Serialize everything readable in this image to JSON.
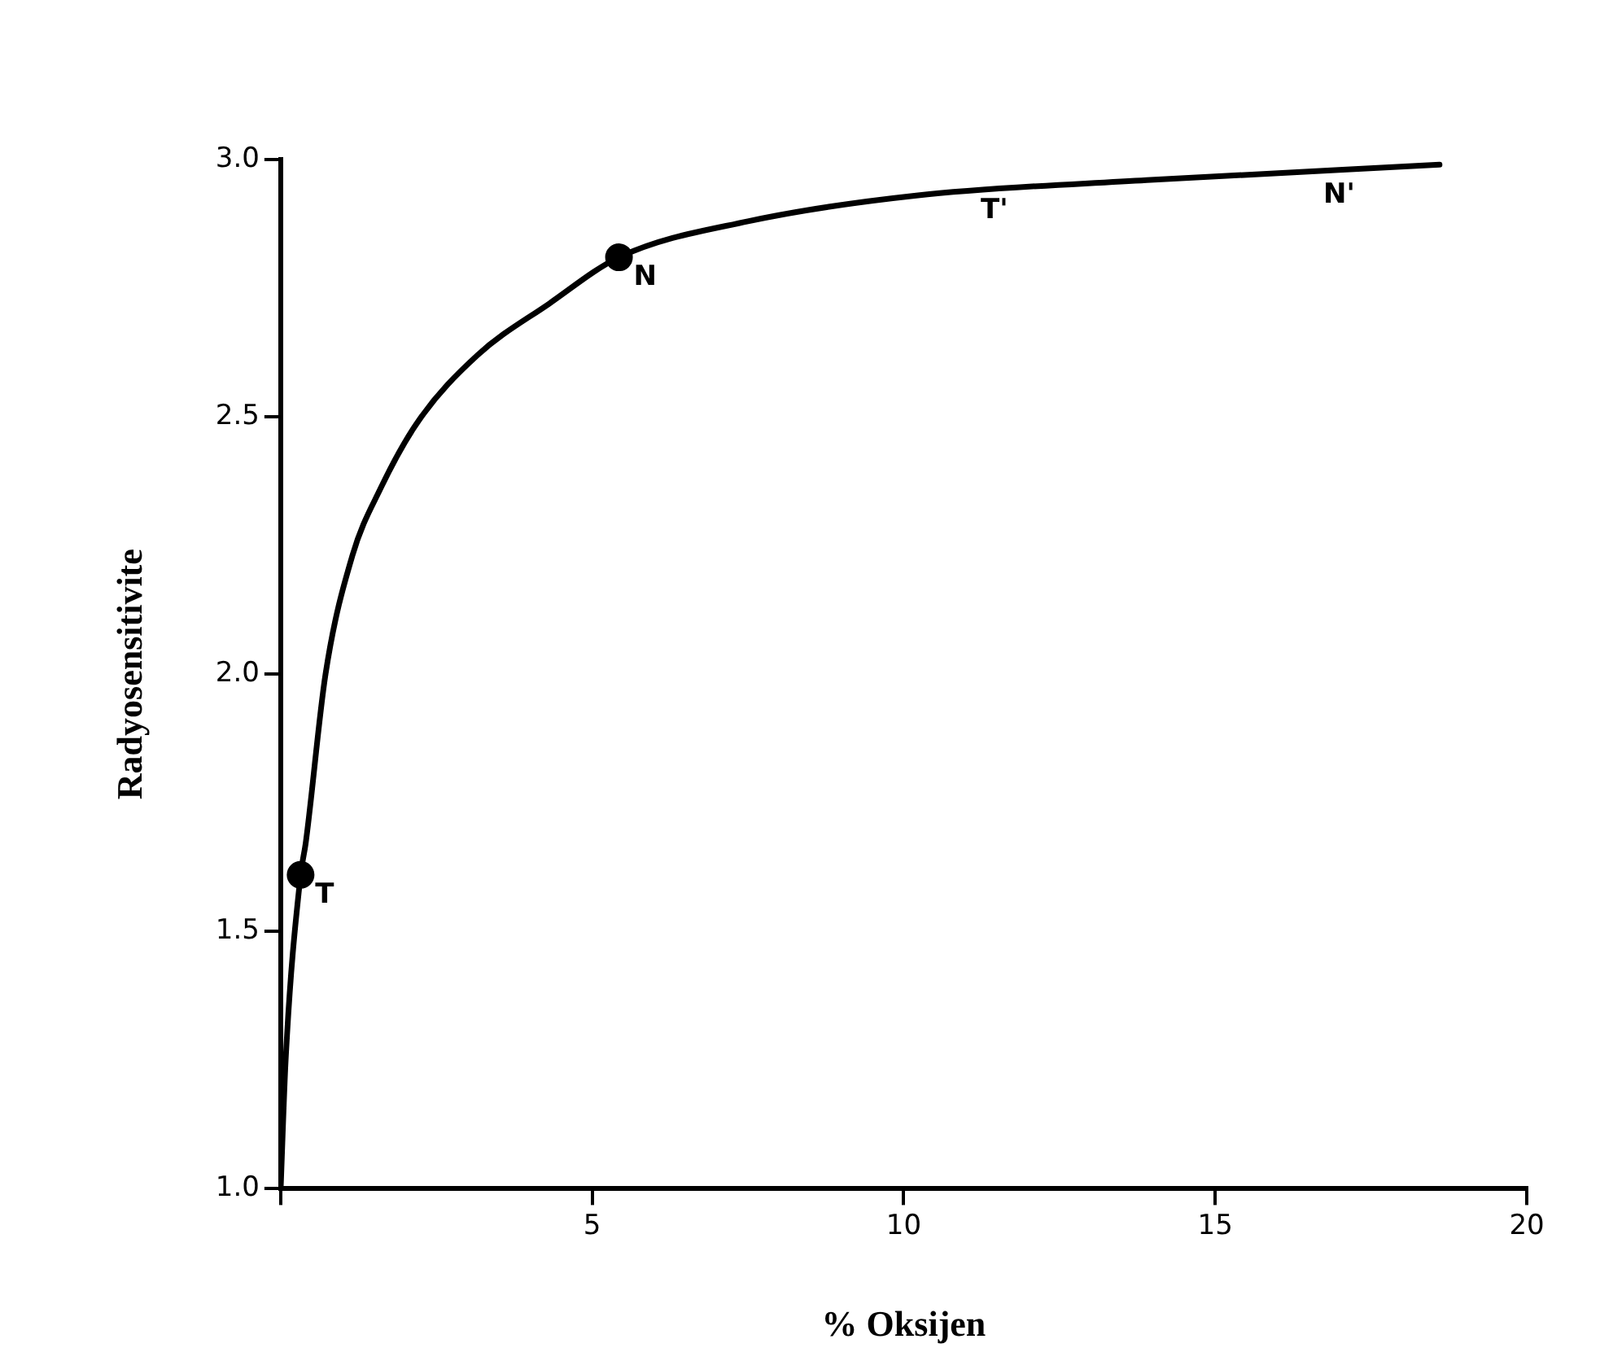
{
  "chart_data": {
    "type": "line",
    "xlabel": "% Oksijen",
    "ylabel": "Radyosensitivite",
    "series": [
      {
        "color": "#000000",
        "marker": "none",
        "x": [
          0,
          0.08,
          0.32,
          0.4,
          0.72,
          1.15,
          1.6,
          2.2,
          3.16,
          4.31,
          5.43,
          7.5,
          10.2,
          13.9,
          18.6
        ],
        "values": [
          1.0,
          1.25,
          1.61,
          1.67,
          2.0,
          2.23,
          2.36,
          2.49,
          2.62,
          2.72,
          2.81,
          2.88,
          2.93,
          2.96,
          2.99
        ]
      },
      {
        "type": "scatter",
        "color": "#000000",
        "marker": "circle",
        "x": [
          0.32,
          5.43
        ],
        "values": [
          1.61,
          2.81
        ]
      }
    ],
    "annotations": [
      {
        "text": "T",
        "x": 0.32,
        "y": 1.61
      },
      {
        "text": "N",
        "x": 5.43,
        "y": 2.81
      },
      {
        "text": "T'",
        "x": 11,
        "y": 2.94
      },
      {
        "text": "N'",
        "x": 16.5,
        "y": 2.97
      }
    ],
    "xlim": [
      0,
      20
    ],
    "xticks": [
      {
        "value": 0,
        "label": null
      },
      5,
      10,
      15,
      20
    ],
    "ylim": [
      1,
      3
    ],
    "yticks": [
      {
        "value": 1,
        "label": "1.0"
      },
      1.5,
      {
        "value": 2,
        "label": "2.0"
      },
      2.5,
      {
        "value": 3,
        "label": "3.0"
      }
    ],
    "grid": false,
    "legend": false
  }
}
